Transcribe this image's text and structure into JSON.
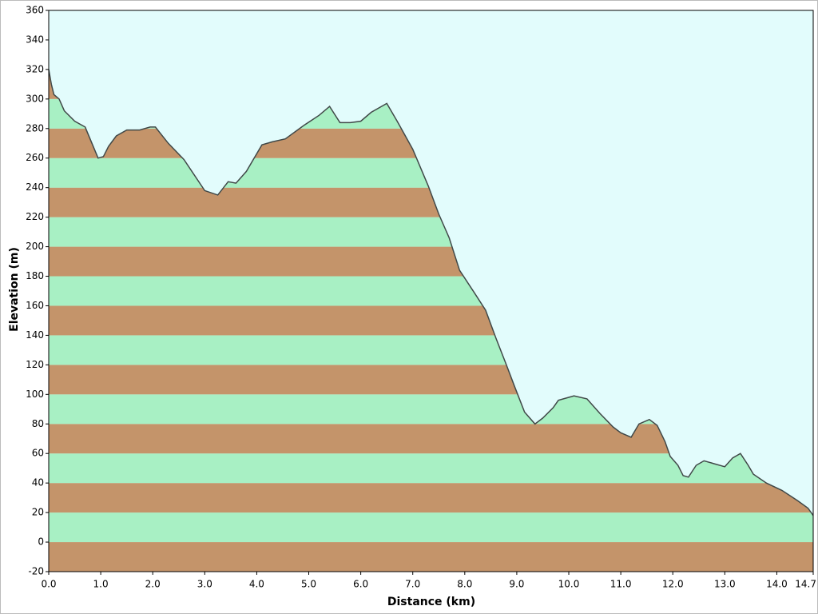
{
  "chart_data": {
    "type": "area",
    "x_label": "Distance   (km)",
    "y_label": "Elevation  (m)",
    "x": [
      0.0,
      0.05,
      0.1,
      0.2,
      0.3,
      0.5,
      0.7,
      0.95,
      1.05,
      1.15,
      1.3,
      1.5,
      1.75,
      1.95,
      2.05,
      2.3,
      2.6,
      3.0,
      3.25,
      3.45,
      3.6,
      3.8,
      4.1,
      4.3,
      4.55,
      4.9,
      5.2,
      5.4,
      5.6,
      5.8,
      6.0,
      6.2,
      6.5,
      6.7,
      7.0,
      7.3,
      7.5,
      7.7,
      7.9,
      8.2,
      8.4,
      8.6,
      8.8,
      8.95,
      9.15,
      9.35,
      9.5,
      9.7,
      9.8,
      10.0,
      10.1,
      10.35,
      10.6,
      10.85,
      11.0,
      11.2,
      11.35,
      11.55,
      11.7,
      11.85,
      11.95,
      12.1,
      12.2,
      12.3,
      12.45,
      12.6,
      12.8,
      13.0,
      13.15,
      13.3,
      13.45,
      13.55,
      13.8,
      14.1,
      14.4,
      14.6,
      14.7
    ],
    "values": [
      320,
      310,
      303,
      300,
      292,
      285,
      281,
      260,
      261,
      268,
      275,
      279,
      279,
      281,
      281,
      270,
      259,
      238,
      235,
      244,
      243,
      251,
      269,
      271,
      273,
      282,
      289,
      295,
      284,
      284,
      285,
      291,
      297,
      285,
      266,
      241,
      222,
      206,
      184,
      168,
      157,
      138,
      120,
      106,
      88,
      80,
      84,
      91,
      96,
      98,
      99,
      97,
      87,
      78,
      74,
      71,
      80,
      83,
      79,
      68,
      58,
      52,
      45,
      44,
      52,
      55,
      53,
      51,
      57,
      60,
      52,
      46,
      40,
      35,
      28,
      23,
      18
    ],
    "colors": [
      "#c4946a",
      "#a8f0c4"
    ],
    "line_color": "#404848",
    "background": "#e2fcfc",
    "xlim": [
      0,
      14.7
    ],
    "ylim": [
      -20,
      360
    ],
    "xticks": [
      {
        "value": 0,
        "label": "0.0"
      },
      {
        "value": 1,
        "label": "1.0"
      },
      {
        "value": 2,
        "label": "2.0"
      },
      {
        "value": 3,
        "label": "3.0"
      },
      {
        "value": 4,
        "label": "4.0"
      },
      {
        "value": 5,
        "label": "5.0"
      },
      {
        "value": 6,
        "label": "6.0"
      },
      {
        "value": 7,
        "label": "7.0"
      },
      {
        "value": 8,
        "label": "8.0"
      },
      {
        "value": 9,
        "label": "9.0"
      },
      {
        "value": 10,
        "label": "10.0"
      },
      {
        "value": 11,
        "label": "11.0"
      },
      {
        "value": 12,
        "label": "12.0"
      },
      {
        "value": 13,
        "label": "13.0"
      },
      {
        "value": 14,
        "label": "14.0"
      },
      14.7
    ],
    "yticks": [
      -20,
      0,
      20,
      40,
      60,
      80,
      100,
      120,
      140,
      160,
      180,
      200,
      220,
      240,
      260,
      280,
      300,
      320,
      340,
      360
    ]
  }
}
